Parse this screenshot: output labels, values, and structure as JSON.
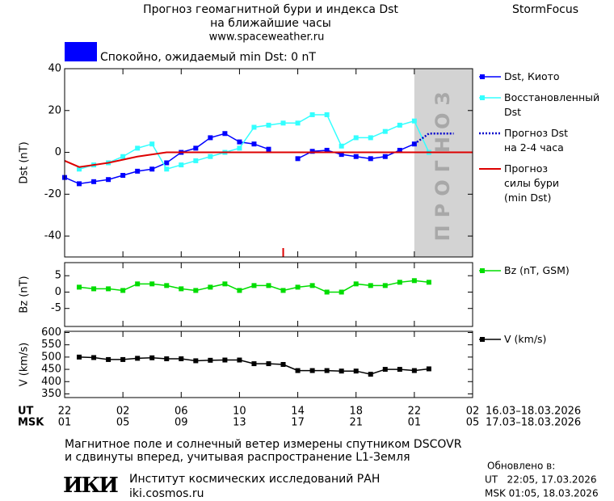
{
  "header": {
    "title": "Прогноз геомагнитной бури и индекса Dst",
    "subtitle": "на ближайшие часы",
    "site": "www.spaceweather.ru",
    "brand": "StormFocus"
  },
  "status": {
    "text": "Спокойно, ожидаемый min Dst: 0 nT",
    "color": "#0000ff"
  },
  "chart_data": [
    {
      "type": "line",
      "ylabel": "Dst (nT)",
      "xlim": [
        0,
        28
      ],
      "ylim": [
        -50,
        40
      ],
      "yticks": [
        40,
        20,
        0,
        -20,
        -40
      ],
      "forecast_from": 24,
      "forecast_label": "ПРОГНОЗ",
      "forecast_color": "#d3d3d3",
      "marker_x": 15,
      "marker_color": "#dd0000",
      "series": [
        {
          "name": "Dst, Киото",
          "color": "#0000ff",
          "marker": "square",
          "dash": false,
          "line_width": 1.5,
          "x": [
            0,
            1,
            2,
            3,
            4,
            5,
            6,
            7,
            8,
            9,
            10,
            11,
            12,
            13,
            14,
            15,
            16,
            17,
            18,
            19,
            20,
            21,
            22,
            23,
            24
          ],
          "values": [
            -12,
            -15,
            -14,
            -13,
            -11,
            -9,
            -8,
            -5,
            0,
            2,
            7,
            9,
            5,
            4,
            1.5,
            null,
            -3,
            0.5,
            1,
            -1,
            -2,
            -3,
            -2,
            1,
            4
          ]
        },
        {
          "name": "Восстановленный\nDst",
          "color": "#33ffff",
          "marker": "square",
          "dash": false,
          "line_width": 1.5,
          "x": [
            1,
            2,
            3,
            4,
            5,
            6,
            7,
            8,
            9,
            10,
            11,
            12,
            13,
            14,
            15,
            16,
            17,
            18,
            19,
            20,
            21,
            22,
            23,
            24,
            25
          ],
          "values": [
            -8,
            -6,
            -5,
            -2,
            2,
            4,
            -8,
            -6,
            -4,
            -2,
            0,
            2,
            12,
            13,
            14,
            14,
            18,
            18,
            3,
            7,
            7,
            10,
            13,
            15,
            0
          ]
        },
        {
          "name": "Прогноз Dst\nна 2-4 часа",
          "color": "#0000cc",
          "marker": "none",
          "dash": true,
          "line_width": 2.5,
          "x": [
            24,
            25,
            26.7
          ],
          "values": [
            4,
            9,
            9
          ]
        },
        {
          "name": "Прогноз\nсилы бури\n(min Dst)",
          "color": "#dd0000",
          "marker": "none",
          "dash": false,
          "line_width": 2,
          "x": [
            0,
            1,
            2,
            3,
            4,
            5,
            6,
            7,
            28
          ],
          "values": [
            -4,
            -7,
            -6,
            -5,
            -3.5,
            -2,
            -1,
            0,
            0
          ]
        }
      ]
    },
    {
      "type": "line",
      "ylabel": "Bz (nT)",
      "xlim": [
        0,
        28
      ],
      "ylim": [
        -10.5,
        9
      ],
      "yticks": [
        5,
        0,
        -5
      ],
      "series": [
        {
          "name": "Bz (nT, GSM)",
          "color": "#00dd00",
          "marker": "square",
          "dash": false,
          "line_width": 1.5,
          "x": [
            1,
            2,
            3,
            4,
            5,
            6,
            7,
            8,
            9,
            10,
            11,
            12,
            13,
            14,
            15,
            16,
            17,
            18,
            19,
            20,
            21,
            22,
            23,
            24,
            25
          ],
          "values": [
            1.5,
            1,
            1,
            0.5,
            2.5,
            2.5,
            2,
            1,
            0.5,
            1.5,
            2.5,
            0.5,
            2,
            2,
            0.5,
            1.5,
            2,
            0,
            0,
            2.5,
            2,
            2,
            3,
            3.5,
            3
          ]
        }
      ]
    },
    {
      "type": "line",
      "ylabel": "V (km/s)",
      "xlim": [
        0,
        28
      ],
      "ylim": [
        335,
        605
      ],
      "yticks": [
        600,
        550,
        500,
        450,
        400,
        350
      ],
      "xrow_labels": [
        "UT",
        "MSK"
      ],
      "xrow_ranges": [
        "16.03–18.03.2026",
        "17.03–18.03.2026"
      ],
      "xticks": [
        {
          "value": 0,
          "label": "22"
        },
        {
          "value": 4,
          "label": "02"
        },
        {
          "value": 8,
          "label": "06"
        },
        {
          "value": 12,
          "label": "10"
        },
        {
          "value": 16,
          "label": "14"
        },
        {
          "value": 20,
          "label": "18"
        },
        {
          "value": 24,
          "label": "22"
        },
        {
          "value": 28,
          "label": "02"
        }
      ],
      "xticks_msk": [
        {
          "value": 0,
          "label": "01"
        },
        {
          "value": 4,
          "label": "05"
        },
        {
          "value": 8,
          "label": "09"
        },
        {
          "value": 12,
          "label": "13"
        },
        {
          "value": 16,
          "label": "17"
        },
        {
          "value": 20,
          "label": "21"
        },
        {
          "value": 24,
          "label": "01"
        },
        {
          "value": 28,
          "label": "05"
        }
      ],
      "series": [
        {
          "name": "V (km/s)",
          "color": "#000000",
          "marker": "square",
          "dash": false,
          "line_width": 1.5,
          "x": [
            1,
            2,
            3,
            4,
            5,
            6,
            7,
            8,
            9,
            10,
            11,
            12,
            13,
            14,
            15,
            16,
            17,
            18,
            19,
            20,
            21,
            22,
            23,
            24,
            25
          ],
          "values": [
            500,
            498,
            490,
            490,
            495,
            497,
            493,
            493,
            485,
            487,
            488,
            488,
            473,
            473,
            470,
            445,
            445,
            445,
            443,
            443,
            430,
            450,
            450,
            445,
            452
          ]
        }
      ]
    }
  ],
  "footer": {
    "note_1": "Магнитное поле и солнечный ветер измерены спутником DSCOVR",
    "note_2": "и сдвинуты вперед, учитывая распространение L1-Земля",
    "logo": "ИКИ",
    "institute": "Институт космических исследований РАН",
    "institute_site": "iki.cosmos.ru",
    "updated_title": "Обновлено в:",
    "updated_ut": "UT   22:05, 17.03.2026",
    "updated_msk": "MSK 01:05, 18.03.2026"
  }
}
